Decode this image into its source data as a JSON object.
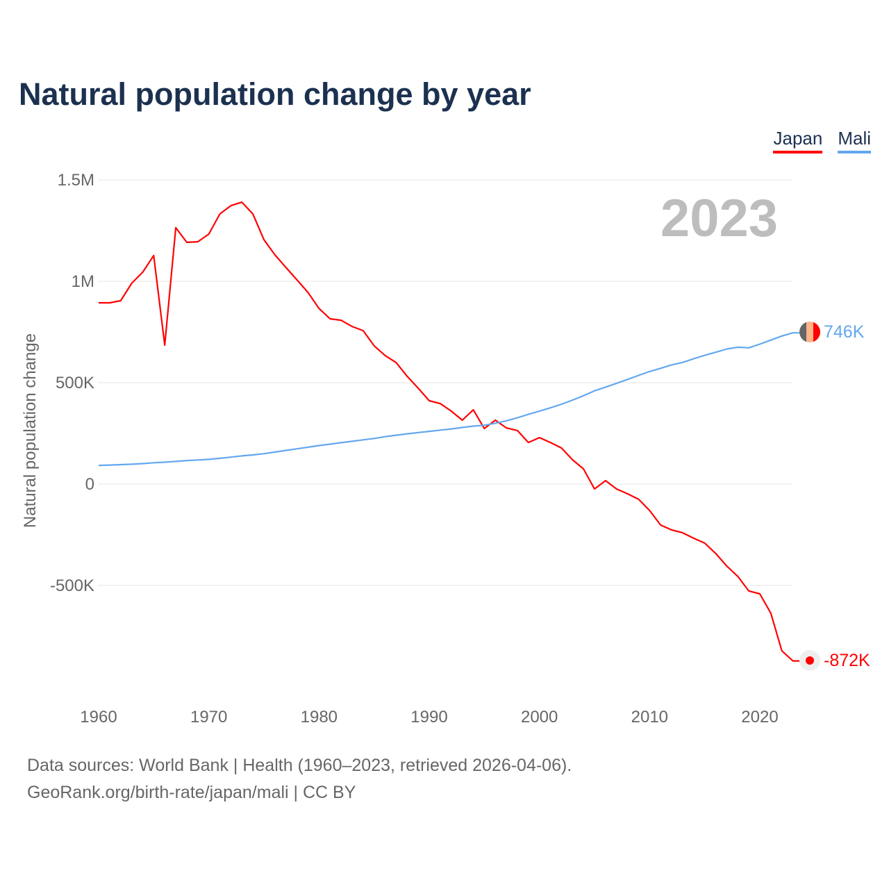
{
  "title": "Natural population change by year",
  "legend": [
    {
      "name": "Japan",
      "color": "#ff0000"
    },
    {
      "name": "Mali",
      "color": "#63a7ef"
    }
  ],
  "year_label": "2023",
  "source_line1": "Data sources: World Bank | Health (1960–2023, retrieved 2026-04-06).",
  "source_line2": "GeoRank.org/birth-rate/japan/mali | CC BY",
  "chart_data": {
    "type": "line",
    "title": "Natural population change by year",
    "xlabel": "",
    "ylabel": "Natural population change",
    "xlim": [
      1960,
      2023
    ],
    "ylim": [
      -1000000,
      1500000
    ],
    "xticks": [
      1960,
      1970,
      1980,
      1990,
      2000,
      2010,
      2020
    ],
    "yticks": [
      {
        "v": 1500000,
        "label": "1.5M"
      },
      {
        "v": 1000000,
        "label": "1M"
      },
      {
        "v": 500000,
        "label": "500K"
      },
      {
        "v": 0,
        "label": "0"
      },
      {
        "v": -500000,
        "label": "-500K"
      }
    ],
    "grid": true,
    "legend_position": "top-right",
    "x_start": 1960,
    "series": [
      {
        "name": "Japan",
        "color": "#ff0000",
        "end_label": "-872K",
        "values": [
          894,
          894,
          904,
          990,
          1045,
          1127,
          685,
          1264,
          1192,
          1195,
          1233,
          1332,
          1373,
          1390,
          1332,
          1205,
          1130,
          1068,
          1007,
          945,
          866,
          815,
          808,
          777,
          757,
          682,
          634,
          599,
          531,
          473,
          411,
          397,
          360,
          315,
          366,
          274,
          315,
          277,
          264,
          205,
          229,
          205,
          178,
          120,
          75,
          -24,
          17,
          -24,
          -48,
          -75,
          -130,
          -202,
          -226,
          -240,
          -267,
          -291,
          -342,
          -404,
          -455,
          -527,
          -541,
          -637,
          -822,
          -872
        ]
      },
      {
        "name": "Mali",
        "color": "#63a7ef",
        "end_label": "746K",
        "values": [
          92,
          94,
          96,
          98,
          101,
          105,
          108,
          112,
          116,
          119,
          122,
          127,
          133,
          139,
          144,
          150,
          158,
          166,
          174,
          182,
          190,
          197,
          204,
          211,
          218,
          225,
          234,
          241,
          248,
          254,
          260,
          266,
          272,
          279,
          286,
          290,
          300,
          312,
          327,
          344,
          360,
          376,
          394,
          414,
          436,
          460,
          478,
          497,
          516,
          536,
          555,
          571,
          588,
          600,
          618,
          635,
          650,
          666,
          675,
          672,
          690,
          710,
          730,
          746
        ]
      }
    ]
  }
}
